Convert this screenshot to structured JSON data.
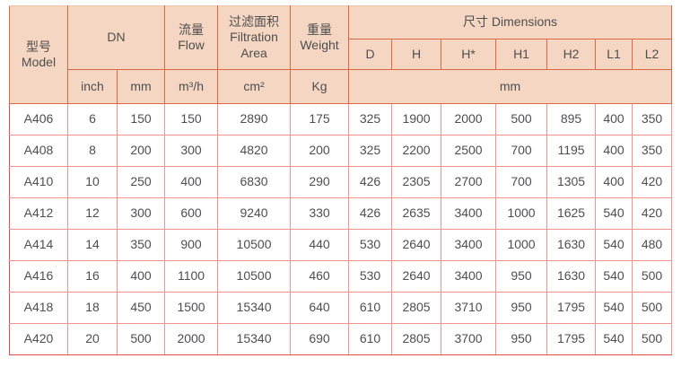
{
  "colors": {
    "header_bg": "#f5d6c2",
    "header_border": "#db6743",
    "data_border": "#f2938d",
    "outer_border": "#e35048",
    "top_border": "#f0c3a6",
    "text": "#4e4e50",
    "page_bg": "#ffffff"
  },
  "table": {
    "header": {
      "model_zh": "型号",
      "model_en": "Model",
      "dn": "DN",
      "flow_zh": "流量",
      "flow_en": "Flow",
      "filtration_zh": "过滤面积",
      "filtration_en_line1": "Filtration",
      "filtration_en_line2": "Area",
      "weight_zh": "重量",
      "weight_en": "Weight",
      "dimensions": "尺寸 Dimensions",
      "dim_cols": [
        "D",
        "H",
        "H*",
        "H1",
        "H2",
        "L1",
        "L2"
      ],
      "unit_inch": "inch",
      "unit_mm": "mm",
      "unit_flow": "m³/h",
      "unit_area": "cm²",
      "unit_weight": "Kg",
      "unit_dims": "mm"
    },
    "row_field_order": [
      "model",
      "dn_inch",
      "dn_mm",
      "flow",
      "area",
      "weight",
      "D",
      "H",
      "Hstar",
      "H1",
      "H2",
      "L1",
      "L2"
    ],
    "rows": [
      {
        "model": "A406",
        "dn_inch": "6",
        "dn_mm": "150",
        "flow": "150",
        "area": "2890",
        "weight": "175",
        "D": "325",
        "H": "1900",
        "Hstar": "2000",
        "H1": "500",
        "H2": "895",
        "L1": "400",
        "L2": "350"
      },
      {
        "model": "A408",
        "dn_inch": "8",
        "dn_mm": "200",
        "flow": "300",
        "area": "4820",
        "weight": "200",
        "D": "325",
        "H": "2200",
        "Hstar": "2500",
        "H1": "700",
        "H2": "1195",
        "L1": "400",
        "L2": "350"
      },
      {
        "model": "A410",
        "dn_inch": "10",
        "dn_mm": "250",
        "flow": "400",
        "area": "6830",
        "weight": "290",
        "D": "426",
        "H": "2305",
        "Hstar": "2700",
        "H1": "700",
        "H2": "1305",
        "L1": "400",
        "L2": "420"
      },
      {
        "model": "A412",
        "dn_inch": "12",
        "dn_mm": "300",
        "flow": "600",
        "area": "9240",
        "weight": "330",
        "D": "426",
        "H": "2635",
        "Hstar": "3400",
        "H1": "1000",
        "H2": "1625",
        "L1": "540",
        "L2": "420"
      },
      {
        "model": "A414",
        "dn_inch": "14",
        "dn_mm": "350",
        "flow": "900",
        "area": "10500",
        "weight": "440",
        "D": "530",
        "H": "2640",
        "Hstar": "3400",
        "H1": "1000",
        "H2": "1630",
        "L1": "540",
        "L2": "480"
      },
      {
        "model": "A416",
        "dn_inch": "16",
        "dn_mm": "400",
        "flow": "1100",
        "area": "10500",
        "weight": "460",
        "D": "530",
        "H": "2640",
        "Hstar": "3400",
        "H1": "950",
        "H2": "1630",
        "L1": "540",
        "L2": "500"
      },
      {
        "model": "A418",
        "dn_inch": "18",
        "dn_mm": "450",
        "flow": "1500",
        "area": "15340",
        "weight": "640",
        "D": "610",
        "H": "2805",
        "Hstar": "3710",
        "H1": "950",
        "H2": "1795",
        "L1": "540",
        "L2": "500"
      },
      {
        "model": "A420",
        "dn_inch": "20",
        "dn_mm": "500",
        "flow": "2000",
        "area": "15340",
        "weight": "690",
        "D": "610",
        "H": "2805",
        "Hstar": "3700",
        "H1": "950",
        "H2": "1795",
        "L1": "540",
        "L2": "500"
      }
    ]
  }
}
